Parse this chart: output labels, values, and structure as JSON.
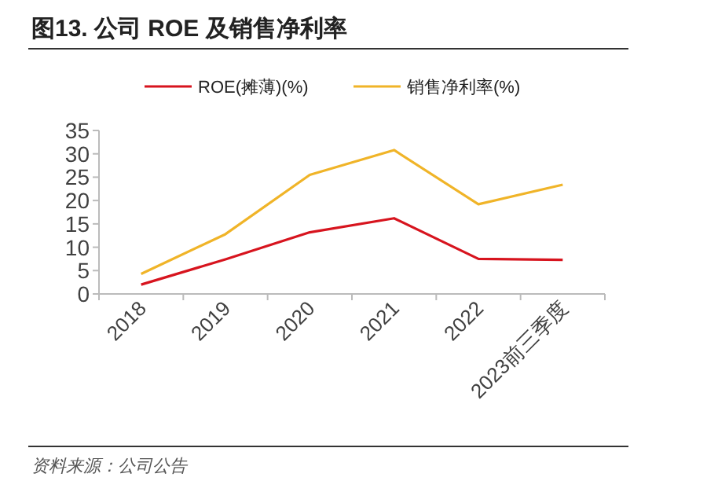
{
  "chart_data": {
    "type": "line",
    "title": "图13. 公司 ROE 及销售净利率",
    "categories": [
      "2018",
      "2019",
      "2020",
      "2021",
      "2022",
      "2023前三季度"
    ],
    "series": [
      {
        "name": "ROE(摊薄)(%)",
        "color": "#d7141e",
        "values": [
          2.0,
          7.4,
          13.2,
          16.2,
          7.5,
          7.3
        ]
      },
      {
        "name": "销售净利率(%)",
        "color": "#f0b428",
        "values": [
          4.3,
          12.8,
          25.5,
          30.8,
          19.2,
          23.4
        ]
      }
    ],
    "ylim": [
      0,
      35
    ],
    "yticks": [
      0,
      5,
      10,
      15,
      20,
      25,
      30,
      35
    ],
    "legend": "top",
    "annotations": [
      "资料来源：公司公告"
    ]
  }
}
